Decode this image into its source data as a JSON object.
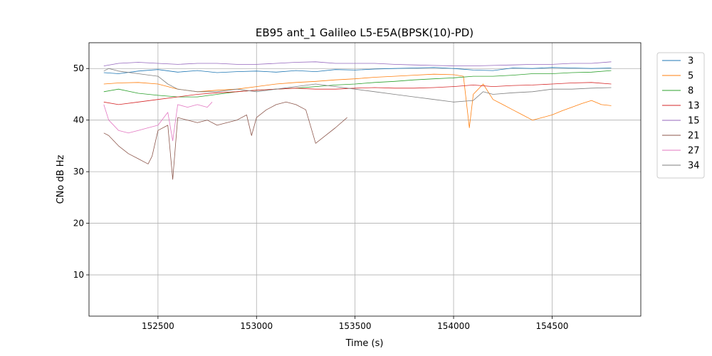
{
  "chart_data": {
    "type": "line",
    "title": "EB95 ant_1 Galileo L5-E5A(BPSK(10)-PD)",
    "xlabel": "Time (s)",
    "ylabel": "CNo dB Hz",
    "xlim": [
      152150,
      154950
    ],
    "ylim": [
      2,
      55
    ],
    "xticks": [
      152500,
      153000,
      153500,
      154000,
      154500
    ],
    "yticks": [
      10,
      20,
      30,
      40,
      50
    ],
    "grid": true,
    "legend_position": "outside-right",
    "series": [
      {
        "name": "3",
        "color": "#1f77b4",
        "x": [
          152225,
          152300,
          152400,
          152500,
          152600,
          152700,
          152800,
          152900,
          153000,
          153100,
          153200,
          153300,
          153400,
          153500,
          153600,
          153700,
          153800,
          153900,
          154000,
          154100,
          154200,
          154300,
          154400,
          154500,
          154600,
          154700,
          154800
        ],
        "y": [
          49.2,
          49.0,
          49.5,
          49.8,
          49.3,
          49.6,
          49.2,
          49.4,
          49.5,
          49.3,
          49.6,
          49.4,
          49.8,
          49.7,
          49.9,
          50.0,
          50.1,
          50.2,
          50.0,
          49.7,
          49.6,
          50.1,
          50.0,
          50.2,
          50.1,
          50.0,
          50.1
        ]
      },
      {
        "name": "5",
        "color": "#ff7f0e",
        "x": [
          152225,
          152300,
          152400,
          152500,
          152600,
          152700,
          152800,
          152900,
          153000,
          153100,
          153200,
          153300,
          153400,
          153500,
          153600,
          153700,
          153800,
          153900,
          154000,
          154050,
          154080,
          154100,
          154150,
          154200,
          154250,
          154300,
          154350,
          154400,
          154450,
          154500,
          154550,
          154600,
          154650,
          154700,
          154750,
          154800
        ],
        "y": [
          47.0,
          47.2,
          47.3,
          47.0,
          46.0,
          45.5,
          45.8,
          46.0,
          46.5,
          47.0,
          47.3,
          47.5,
          47.8,
          48.0,
          48.3,
          48.5,
          48.7,
          48.9,
          48.8,
          48.5,
          38.5,
          45.0,
          47.0,
          44.0,
          43.0,
          42.0,
          41.0,
          40.0,
          40.5,
          41.0,
          41.8,
          42.5,
          43.2,
          43.8,
          43.0,
          42.8
        ]
      },
      {
        "name": "8",
        "color": "#2ca02c",
        "x": [
          152225,
          152300,
          152400,
          152500,
          152600,
          152700,
          152800,
          152900,
          153000,
          153100,
          153200,
          153300,
          153400,
          153500,
          153600,
          153700,
          153800,
          153900,
          154000,
          154100,
          154200,
          154300,
          154400,
          154500,
          154600,
          154700,
          154800
        ],
        "y": [
          45.5,
          46.0,
          45.2,
          44.8,
          44.5,
          44.5,
          45.0,
          45.5,
          45.8,
          46.0,
          46.2,
          46.5,
          46.8,
          47.0,
          47.3,
          47.5,
          47.8,
          48.0,
          48.2,
          48.5,
          48.5,
          48.7,
          49.0,
          49.0,
          49.2,
          49.3,
          49.6
        ]
      },
      {
        "name": "13",
        "color": "#d62728",
        "x": [
          152225,
          152300,
          152400,
          152500,
          152600,
          152700,
          152800,
          152900,
          153000,
          153100,
          153200,
          153300,
          153400,
          153500,
          153600,
          153700,
          153800,
          153900,
          154000,
          154100,
          154200,
          154300,
          154400,
          154500,
          154600,
          154700,
          154800
        ],
        "y": [
          43.5,
          43.0,
          43.5,
          44.0,
          44.5,
          45.0,
          45.3,
          45.5,
          45.8,
          46.0,
          46.2,
          46.0,
          46.0,
          46.2,
          46.3,
          46.2,
          46.2,
          46.3,
          46.5,
          46.8,
          46.5,
          46.7,
          46.8,
          47.0,
          47.2,
          47.3,
          47.0
        ]
      },
      {
        "name": "15",
        "color": "#9467bd",
        "x": [
          152225,
          152300,
          152400,
          152500,
          152600,
          152700,
          152800,
          152900,
          153000,
          153100,
          153200,
          153300,
          153400,
          153500,
          153600,
          153700,
          153800,
          153900,
          154000,
          154100,
          154200,
          154300,
          154400,
          154500,
          154600,
          154700,
          154800
        ],
        "y": [
          50.5,
          51.0,
          51.2,
          51.0,
          50.8,
          51.0,
          51.0,
          50.8,
          50.8,
          51.0,
          51.2,
          51.3,
          51.0,
          51.0,
          51.0,
          50.8,
          50.7,
          50.6,
          50.5,
          50.5,
          50.6,
          50.7,
          50.8,
          50.8,
          51.0,
          51.0,
          51.3
        ]
      },
      {
        "name": "21",
        "color": "#8c564b",
        "x": [
          152225,
          152250,
          152300,
          152350,
          152400,
          152450,
          152470,
          152500,
          152550,
          152575,
          152600,
          152650,
          152700,
          152750,
          152800,
          152850,
          152900,
          152950,
          152975,
          153000,
          153050,
          153100,
          153150,
          153200,
          153250,
          153300,
          153350,
          153400,
          153460
        ],
        "y": [
          37.5,
          37.0,
          35.0,
          33.5,
          32.5,
          31.5,
          33.0,
          38.0,
          39.0,
          28.5,
          40.5,
          40.0,
          39.5,
          40.0,
          39.0,
          39.5,
          40.0,
          41.0,
          37.0,
          40.5,
          42.0,
          43.0,
          43.5,
          43.0,
          42.0,
          35.5,
          37.0,
          38.5,
          40.5
        ]
      },
      {
        "name": "27",
        "color": "#e377c2",
        "x": [
          152225,
          152250,
          152300,
          152350,
          152400,
          152450,
          152500,
          152550,
          152575,
          152600,
          152650,
          152700,
          152750,
          152775
        ],
        "y": [
          43.0,
          40.0,
          38.0,
          37.5,
          38.0,
          38.5,
          39.0,
          41.5,
          36.0,
          43.0,
          42.5,
          43.0,
          42.5,
          43.5
        ]
      },
      {
        "name": "34",
        "color": "#7f7f7f",
        "x": [
          152225,
          152250,
          152300,
          152400,
          152500,
          152550,
          152600,
          152700,
          152800,
          152900,
          153000,
          153100,
          153200,
          153300,
          153400,
          153500,
          153600,
          153700,
          153800,
          153900,
          154000,
          154100,
          154150,
          154200,
          154300,
          154400,
          154500,
          154600,
          154700,
          154800
        ],
        "y": [
          49.5,
          50.0,
          49.5,
          49.0,
          48.5,
          47.0,
          46.0,
          45.5,
          45.5,
          46.0,
          45.5,
          46.0,
          46.5,
          47.0,
          46.5,
          46.0,
          45.5,
          45.0,
          44.5,
          44.0,
          43.5,
          43.8,
          45.5,
          45.0,
          45.3,
          45.5,
          46.0,
          46.0,
          46.2,
          46.3
        ]
      }
    ]
  }
}
